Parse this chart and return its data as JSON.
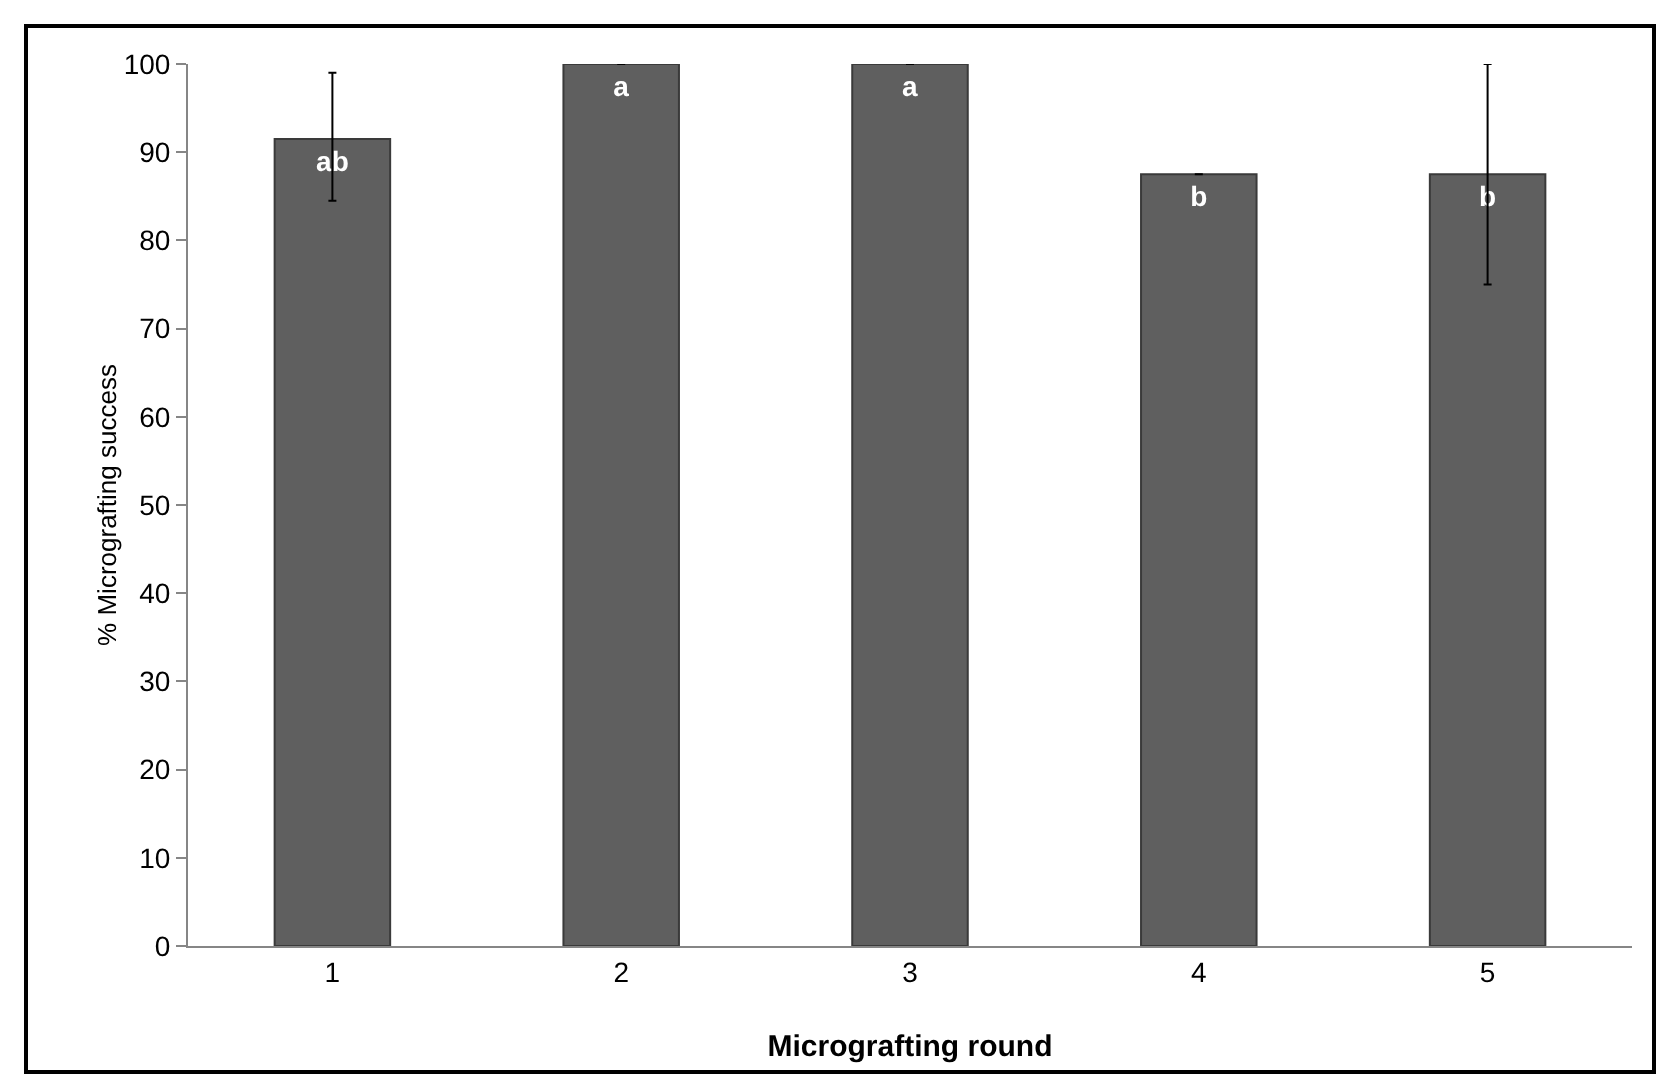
{
  "chart_data": {
    "type": "bar",
    "xlabel": "Micrografting round",
    "ylabel": "% Micrografting success",
    "categories": [
      "1",
      "2",
      "3",
      "4",
      "5"
    ],
    "values": [
      91.5,
      100,
      100,
      87.5,
      87.5
    ],
    "errors": [
      [
        84.5,
        99
      ],
      0,
      0,
      0,
      [
        75,
        100
      ]
    ],
    "color": "#5f5f5f",
    "value_labels": [
      "ab",
      "a",
      "a",
      "b",
      "b"
    ],
    "ylim": [
      0,
      100
    ],
    "yticks": [
      0,
      10,
      20,
      30,
      40,
      50,
      60,
      70,
      80,
      90,
      100
    ],
    "grid": false,
    "legend": false
  }
}
